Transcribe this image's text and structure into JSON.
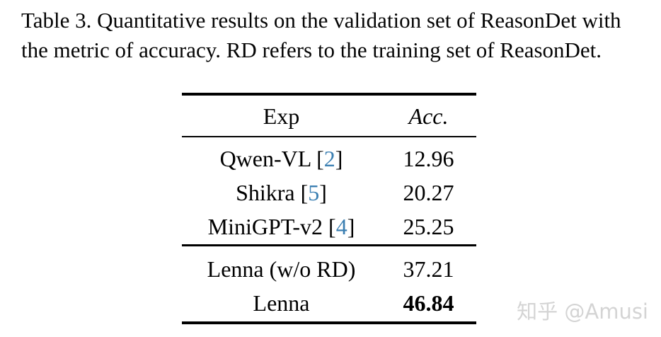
{
  "caption": {
    "lines": [
      "Table 3. Quantitative results on the validation set of ReasonDet with",
      "the metric of accuracy. RD refers to the training set of ReasonDet."
    ]
  },
  "table": {
    "header": {
      "exp": "Exp",
      "acc": "Acc."
    },
    "bracket_open": "[",
    "bracket_close": "]",
    "baselines": [
      {
        "name": "Qwen-VL",
        "cite": "2",
        "acc": "12.96"
      },
      {
        "name": "Shikra",
        "cite": "5",
        "acc": "20.27"
      },
      {
        "name": "MiniGPT-v2",
        "cite": "4",
        "acc": "25.25"
      }
    ],
    "ours": [
      {
        "name": "Lenna (w/o RD)",
        "acc": "37.21"
      },
      {
        "name": "Lenna",
        "acc": "46.84"
      }
    ]
  },
  "watermark": {
    "text": "知乎 @Amusi"
  },
  "colors": {
    "text": "#000000",
    "citation": "#3b7fb2",
    "watermark": "#d4d4d4",
    "background": "#ffffff"
  }
}
